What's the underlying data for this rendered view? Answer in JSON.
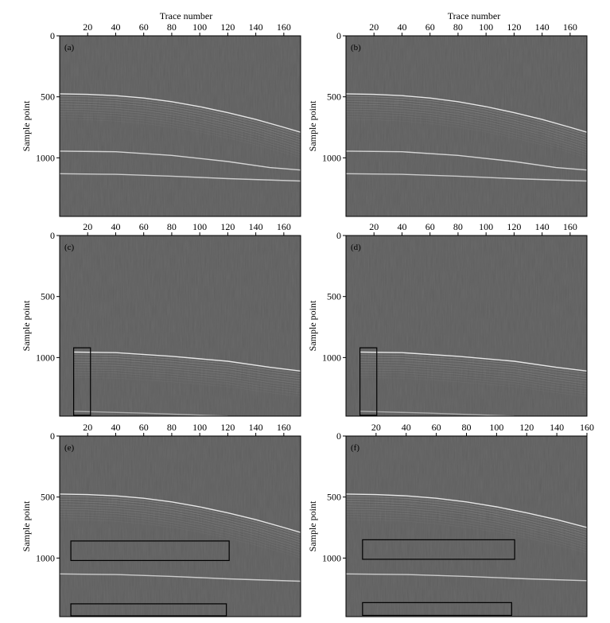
{
  "figure": {
    "x_axis_label": "Trace number",
    "y_axis_label": "Sample point"
  },
  "colors": {
    "panel_background": "#5e5e5e",
    "event": "#e6e6e6",
    "box_outline": "#000000"
  },
  "chart_data": [
    {
      "type": "heatmap",
      "label": "(a)",
      "xlabel": "Trace number",
      "ylabel": "Sample point",
      "xlim": [
        0,
        172
      ],
      "ylim": [
        0,
        1480
      ],
      "x_ticks": [
        20,
        40,
        60,
        80,
        100,
        120,
        140,
        160
      ],
      "y_ticks": [
        0,
        500,
        1000
      ],
      "events": [
        {
          "points": [
            [
              0,
              475
            ],
            [
              20,
              480
            ],
            [
              40,
              490
            ],
            [
              60,
              510
            ],
            [
              80,
              540
            ],
            [
              100,
              580
            ],
            [
              120,
              630
            ],
            [
              140,
              685
            ],
            [
              160,
              750
            ],
            [
              172,
              790
            ]
          ],
          "strength": 1.0,
          "halo": true
        },
        {
          "points": [
            [
              0,
              945
            ],
            [
              40,
              950
            ],
            [
              80,
              980
            ],
            [
              120,
              1030
            ],
            [
              150,
              1080
            ],
            [
              172,
              1100
            ]
          ],
          "strength": 0.85,
          "halo": false
        },
        {
          "points": [
            [
              0,
              1130
            ],
            [
              40,
              1135
            ],
            [
              80,
              1150
            ],
            [
              120,
              1170
            ],
            [
              172,
              1190
            ]
          ],
          "strength": 0.8,
          "halo": false
        }
      ],
      "boxes": []
    },
    {
      "type": "heatmap",
      "label": "(b)",
      "xlabel": "Trace number",
      "ylabel": "Sample point",
      "xlim": [
        0,
        172
      ],
      "ylim": [
        0,
        1480
      ],
      "x_ticks": [
        20,
        40,
        60,
        80,
        100,
        120,
        140,
        160
      ],
      "y_ticks": [
        0,
        500,
        1000
      ],
      "events": [
        {
          "points": [
            [
              0,
              475
            ],
            [
              20,
              480
            ],
            [
              40,
              490
            ],
            [
              60,
              510
            ],
            [
              80,
              540
            ],
            [
              100,
              580
            ],
            [
              120,
              630
            ],
            [
              140,
              685
            ],
            [
              160,
              750
            ],
            [
              172,
              790
            ]
          ],
          "strength": 1.0,
          "halo": true
        },
        {
          "points": [
            [
              0,
              945
            ],
            [
              40,
              950
            ],
            [
              80,
              980
            ],
            [
              120,
              1030
            ],
            [
              150,
              1080
            ],
            [
              172,
              1100
            ]
          ],
          "strength": 0.85,
          "halo": false
        },
        {
          "points": [
            [
              0,
              1130
            ],
            [
              40,
              1135
            ],
            [
              80,
              1150
            ],
            [
              120,
              1170
            ],
            [
              172,
              1190
            ]
          ],
          "strength": 0.8,
          "halo": false
        }
      ],
      "boxes": []
    },
    {
      "type": "heatmap",
      "label": "(c)",
      "xlabel": "",
      "ylabel": "Sample point",
      "xlim": [
        0,
        172
      ],
      "ylim": [
        0,
        1480
      ],
      "x_ticks": [
        20,
        40,
        60,
        80,
        100,
        120,
        140,
        160
      ],
      "y_ticks": [
        0,
        500,
        1000
      ],
      "events": [
        {
          "points": [
            [
              10,
              955
            ],
            [
              40,
              960
            ],
            [
              80,
              990
            ],
            [
              120,
              1030
            ],
            [
              150,
              1080
            ],
            [
              172,
              1110
            ]
          ],
          "strength": 1.0,
          "halo": true
        },
        {
          "points": [
            [
              10,
              1440
            ],
            [
              60,
              1455
            ],
            [
              120,
              1480
            ]
          ],
          "strength": 0.55,
          "halo": false
        }
      ],
      "boxes": [
        {
          "x": [
            10,
            22
          ],
          "y": [
            920,
            1480
          ]
        }
      ]
    },
    {
      "type": "heatmap",
      "label": "(d)",
      "xlabel": "",
      "ylabel": "Sample point",
      "xlim": [
        0,
        172
      ],
      "ylim": [
        0,
        1480
      ],
      "x_ticks": [
        20,
        40,
        60,
        80,
        100,
        120,
        140,
        160
      ],
      "y_ticks": [
        0,
        500,
        1000
      ],
      "events": [
        {
          "points": [
            [
              10,
              955
            ],
            [
              40,
              960
            ],
            [
              80,
              990
            ],
            [
              120,
              1030
            ],
            [
              150,
              1080
            ],
            [
              172,
              1110
            ]
          ],
          "strength": 1.0,
          "halo": true
        },
        {
          "points": [
            [
              10,
              1440
            ],
            [
              60,
              1455
            ],
            [
              120,
              1480
            ]
          ],
          "strength": 0.55,
          "halo": false
        }
      ],
      "boxes": [
        {
          "x": [
            10,
            22
          ],
          "y": [
            920,
            1480
          ]
        }
      ]
    },
    {
      "type": "heatmap",
      "label": "(e)",
      "xlabel": "",
      "ylabel": "Sample point",
      "xlim": [
        0,
        172
      ],
      "ylim": [
        0,
        1480
      ],
      "x_ticks": [
        20,
        40,
        60,
        80,
        100,
        120,
        140,
        160
      ],
      "y_ticks": [
        0,
        500,
        1000
      ],
      "events": [
        {
          "points": [
            [
              0,
              475
            ],
            [
              20,
              480
            ],
            [
              40,
              490
            ],
            [
              60,
              510
            ],
            [
              80,
              540
            ],
            [
              100,
              580
            ],
            [
              120,
              630
            ],
            [
              140,
              685
            ],
            [
              160,
              750
            ],
            [
              172,
              790
            ]
          ],
          "strength": 1.0,
          "halo": true
        },
        {
          "points": [
            [
              0,
              1130
            ],
            [
              40,
              1135
            ],
            [
              80,
              1150
            ],
            [
              120,
              1170
            ],
            [
              172,
              1190
            ]
          ],
          "strength": 0.8,
          "halo": false
        }
      ],
      "boxes": [
        {
          "x": [
            8,
            121
          ],
          "y": [
            860,
            1020
          ]
        },
        {
          "x": [
            8,
            119
          ],
          "y": [
            1375,
            1475
          ]
        }
      ]
    },
    {
      "type": "heatmap",
      "label": "(f)",
      "xlabel": "",
      "ylabel": "Sample point",
      "xlim": [
        0,
        160
      ],
      "ylim": [
        0,
        1480
      ],
      "x_ticks": [
        20,
        40,
        60,
        80,
        100,
        120,
        140,
        160
      ],
      "y_ticks": [
        0,
        500,
        1000
      ],
      "events": [
        {
          "points": [
            [
              0,
              475
            ],
            [
              20,
              480
            ],
            [
              40,
              490
            ],
            [
              60,
              510
            ],
            [
              80,
              540
            ],
            [
              100,
              580
            ],
            [
              120,
              630
            ],
            [
              140,
              685
            ],
            [
              160,
              750
            ]
          ],
          "strength": 1.0,
          "halo": true
        },
        {
          "points": [
            [
              0,
              1130
            ],
            [
              40,
              1135
            ],
            [
              80,
              1150
            ],
            [
              120,
              1170
            ],
            [
              160,
              1185
            ]
          ],
          "strength": 0.8,
          "halo": false
        }
      ],
      "boxes": [
        {
          "x": [
            11,
            112
          ],
          "y": [
            850,
            1010
          ]
        },
        {
          "x": [
            11,
            110
          ],
          "y": [
            1365,
            1470
          ]
        }
      ]
    }
  ]
}
